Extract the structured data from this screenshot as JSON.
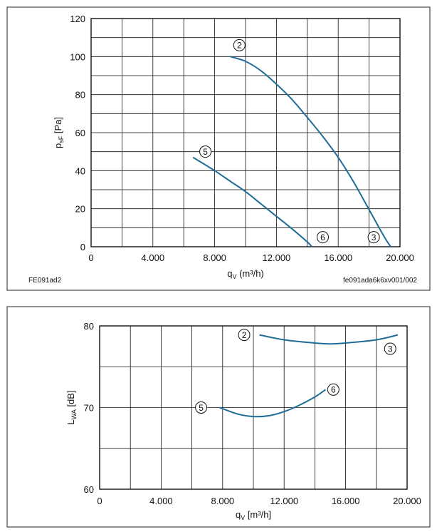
{
  "chart_data": [
    {
      "type": "line",
      "xlabel_main": "q",
      "xlabel_sub": "V",
      "xlabel_unit": " (m³/h)",
      "ylabel_main": "p",
      "ylabel_sub": "sF",
      "ylabel_unit": " [Pa]",
      "xlim": [
        0,
        20000
      ],
      "ylim": [
        0,
        120
      ],
      "x_ticks": [
        0,
        4000,
        8000,
        12000,
        16000,
        20000
      ],
      "x_tick_labels": [
        "0",
        "4.000",
        "8.000",
        "12.000",
        "16.000",
        "20.000"
      ],
      "y_ticks": [
        0,
        20,
        40,
        60,
        80,
        100,
        120
      ],
      "y_tick_labels": [
        "0",
        "20",
        "40",
        "60",
        "80",
        "100",
        "120"
      ],
      "grid": true,
      "note_left": "FE091ad2",
      "note_right": "fe091ada6k6xv001/002",
      "series": [
        {
          "marker": "2",
          "color": "#1f6d97",
          "x": [
            9000,
            10000,
            11000,
            12000,
            13000,
            14000,
            15000,
            16000,
            17000,
            18000,
            19000,
            19400
          ],
          "y": [
            100,
            97.5,
            92.5,
            85.5,
            77.5,
            68,
            58,
            47,
            34,
            19.5,
            5,
            0
          ]
        },
        {
          "marker": "5",
          "color": "#1f6d97",
          "x": [
            6600,
            8000,
            9000,
            10000,
            11000,
            12000,
            13000,
            14000,
            14300
          ],
          "y": [
            47,
            40,
            34.5,
            29,
            22.5,
            16,
            9.5,
            2.5,
            0
          ]
        }
      ],
      "markers": [
        {
          "label": "2",
          "x": 9600,
          "y": 106
        },
        {
          "label": "5",
          "x": 7400,
          "y": 50
        },
        {
          "label": "6",
          "x": 15000,
          "y": 5
        },
        {
          "label": "3",
          "x": 18300,
          "y": 5
        }
      ]
    },
    {
      "type": "line",
      "xlabel_main": "q",
      "xlabel_sub": "V",
      "xlabel_unit": " [m³/h]",
      "ylabel_main": "L",
      "ylabel_sub": "WA",
      "ylabel_unit": " [dB]",
      "xlim": [
        0,
        20000
      ],
      "ylim": [
        60,
        80
      ],
      "x_ticks": [
        0,
        4000,
        8000,
        12000,
        16000,
        20000
      ],
      "x_tick_labels": [
        "0",
        "4.000",
        "8.000",
        "12.000",
        "16.000",
        "20.000"
      ],
      "y_ticks": [
        60,
        70,
        80
      ],
      "y_tick_labels": [
        "60",
        "70",
        "80"
      ],
      "y_grid_ticks": [
        60,
        65,
        70,
        75,
        80
      ],
      "grid": true,
      "series": [
        {
          "marker": "2",
          "color": "#1f6d97",
          "x": [
            10400,
            12000,
            14000,
            15000,
            16000,
            18000,
            19400
          ],
          "y": [
            78.9,
            78.3,
            77.9,
            77.8,
            77.9,
            78.3,
            78.9
          ]
        },
        {
          "marker": "5",
          "color": "#1f6d97",
          "x": [
            7800,
            9000,
            10000,
            11000,
            12000,
            13000,
            14000,
            14700
          ],
          "y": [
            70,
            69.2,
            68.9,
            69,
            69.5,
            70.3,
            71.3,
            72.2
          ]
        }
      ],
      "markers": [
        {
          "label": "2",
          "x": 9400,
          "y": 78.9
        },
        {
          "label": "3",
          "x": 18900,
          "y": 77.2
        },
        {
          "label": "5",
          "x": 6600,
          "y": 70
        },
        {
          "label": "6",
          "x": 15200,
          "y": 72.2
        }
      ]
    }
  ]
}
